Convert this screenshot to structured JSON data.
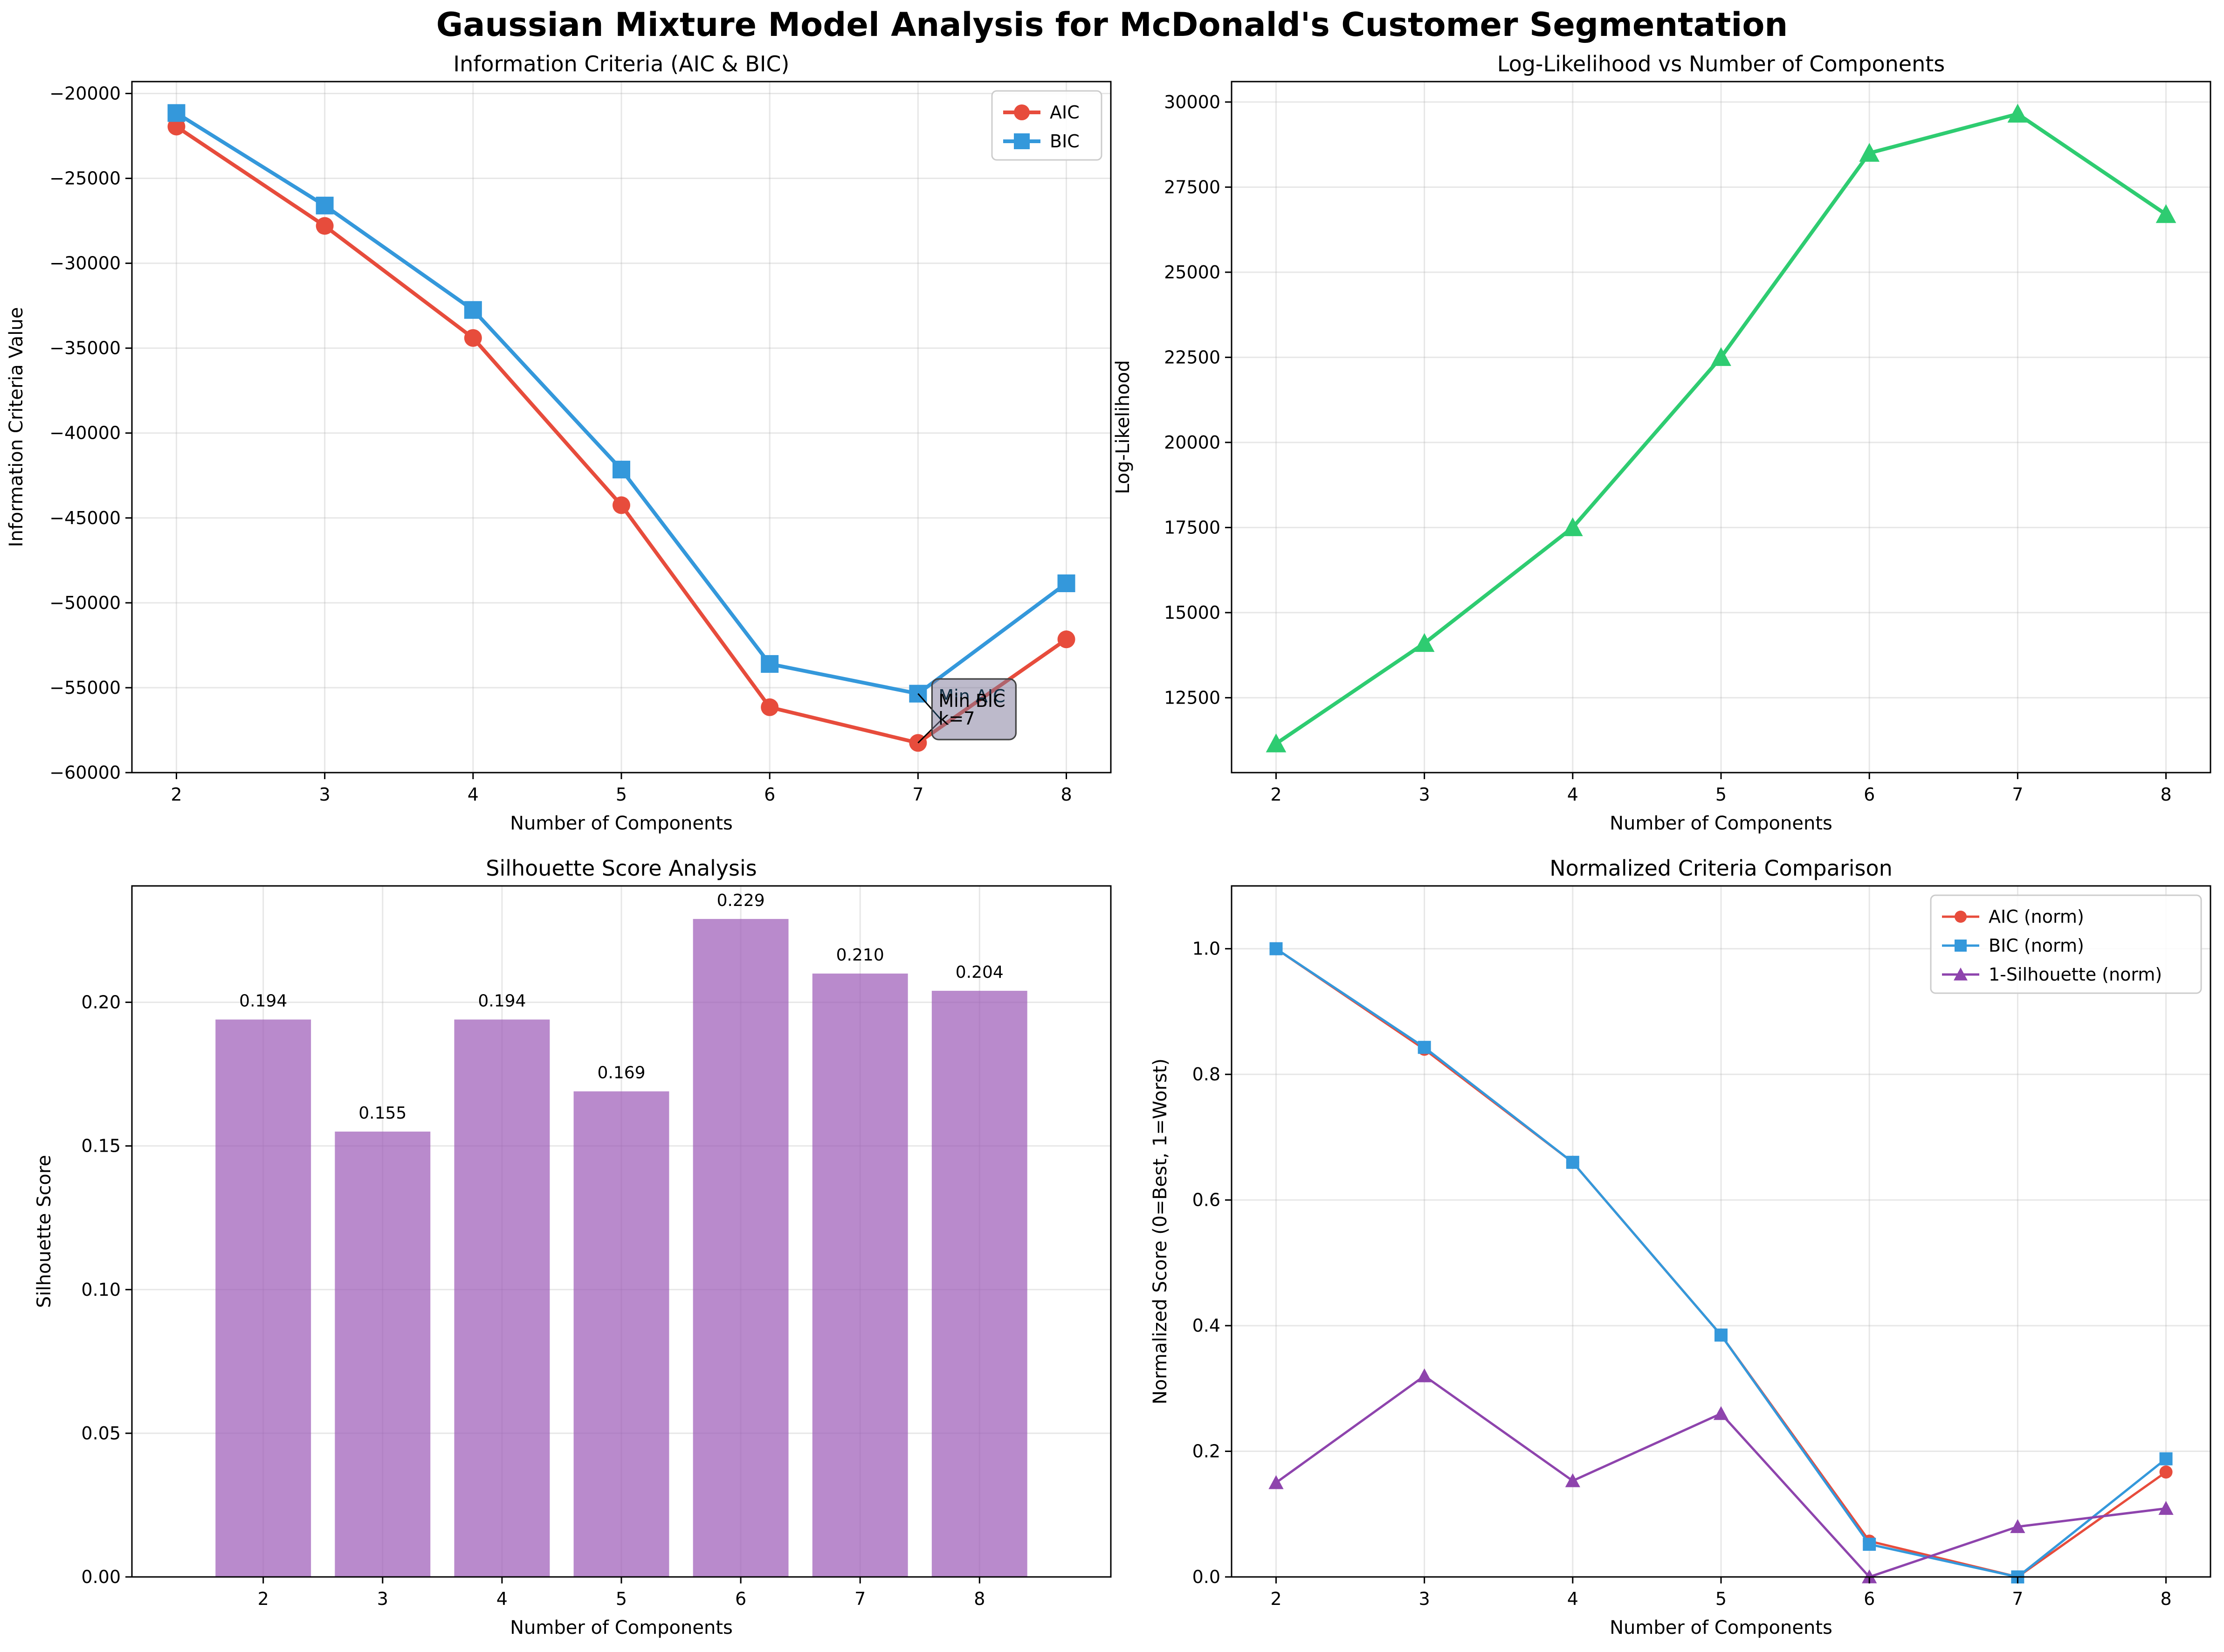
{
  "figure": {
    "title": "Gaussian Mixture Model Analysis for McDonald's Customer Segmentation"
  },
  "chart_data": [
    {
      "id": "ic",
      "type": "line",
      "title": "Information Criteria (AIC & BIC)",
      "xlabel": "Number of Components",
      "ylabel": "Information Criteria Value",
      "x": [
        2,
        3,
        4,
        5,
        6,
        7,
        8
      ],
      "xlim": [
        1.7,
        8.3
      ],
      "ylim": [
        -60000,
        -19300
      ],
      "yticks": [
        -60000,
        -55000,
        -50000,
        -45000,
        -40000,
        -35000,
        -30000,
        -25000,
        -20000
      ],
      "grid": true,
      "legend": "top-right",
      "series": [
        {
          "name": "AIC",
          "color": "#e74c3c",
          "marker": "circle",
          "values": [
            -21950,
            -27800,
            -34400,
            -44250,
            -56150,
            -58250,
            -52150
          ]
        },
        {
          "name": "BIC",
          "color": "#3498db",
          "marker": "square",
          "values": [
            -21150,
            -26600,
            -32750,
            -42150,
            -53600,
            -55350,
            -48850
          ]
        }
      ],
      "annotations": [
        {
          "text": "Min AIC",
          "text2": "k=7",
          "x": 7,
          "y": -58250,
          "color": "#e74c3c"
        },
        {
          "text": "Min BIC",
          "text2": "k=7",
          "x": 7,
          "y": -55350,
          "color": "#3498db"
        }
      ]
    },
    {
      "id": "ll",
      "type": "line",
      "title": "Log-Likelihood vs Number of Components",
      "xlabel": "Number of Components",
      "ylabel": "Log-Likelihood",
      "x": [
        2,
        3,
        4,
        5,
        6,
        7,
        8
      ],
      "xlim": [
        1.7,
        8.3
      ],
      "ylim": [
        10300,
        30600
      ],
      "yticks": [
        12500,
        15000,
        17500,
        20000,
        22500,
        25000,
        27500,
        30000
      ],
      "grid": true,
      "series": [
        {
          "name": "",
          "color": "#2ecc71",
          "marker": "triangle",
          "values": [
            11150,
            14100,
            17500,
            22500,
            28500,
            29650,
            26700
          ]
        }
      ]
    },
    {
      "id": "sil",
      "type": "bar",
      "title": "Silhouette Score Analysis",
      "xlabel": "Number of Components",
      "ylabel": "Silhouette Score",
      "categories": [
        "2",
        "3",
        "4",
        "5",
        "6",
        "7",
        "8"
      ],
      "values": [
        0.194,
        0.155,
        0.194,
        0.169,
        0.229,
        0.21,
        0.204
      ],
      "labels": [
        "0.194",
        "0.155",
        "0.194",
        "0.169",
        "0.229",
        "0.210",
        "0.204"
      ],
      "ylim": [
        0,
        0.2405
      ],
      "yticks": [
        0.0,
        0.05,
        0.1,
        0.15,
        0.2
      ],
      "color": "#9b59b6",
      "grid": true
    },
    {
      "id": "norm",
      "type": "line",
      "title": "Normalized Criteria Comparison",
      "xlabel": "Number of Components",
      "ylabel": "Normalized Score (0=Best, 1=Worst)",
      "x": [
        2,
        3,
        4,
        5,
        6,
        7,
        8
      ],
      "xlim": [
        1.7,
        8.3
      ],
      "ylim": [
        0,
        1.1
      ],
      "yticks": [
        0.0,
        0.2,
        0.4,
        0.6,
        0.8,
        1.0
      ],
      "grid": true,
      "legend": "top-right",
      "series": [
        {
          "name": "AIC (norm)",
          "color": "#e74c3c",
          "marker": "circle",
          "values": [
            1.0,
            0.84,
            0.66,
            0.385,
            0.057,
            0.0,
            0.167
          ]
        },
        {
          "name": "BIC (norm)",
          "color": "#3498db",
          "marker": "square",
          "values": [
            1.0,
            0.843,
            0.66,
            0.385,
            0.052,
            0.0,
            0.188
          ]
        },
        {
          "name": "1-Silhouette (norm)",
          "color": "#8e44ad",
          "marker": "triangle",
          "values": [
            0.15,
            0.32,
            0.153,
            0.26,
            0.0,
            0.08,
            0.109
          ]
        }
      ]
    }
  ]
}
